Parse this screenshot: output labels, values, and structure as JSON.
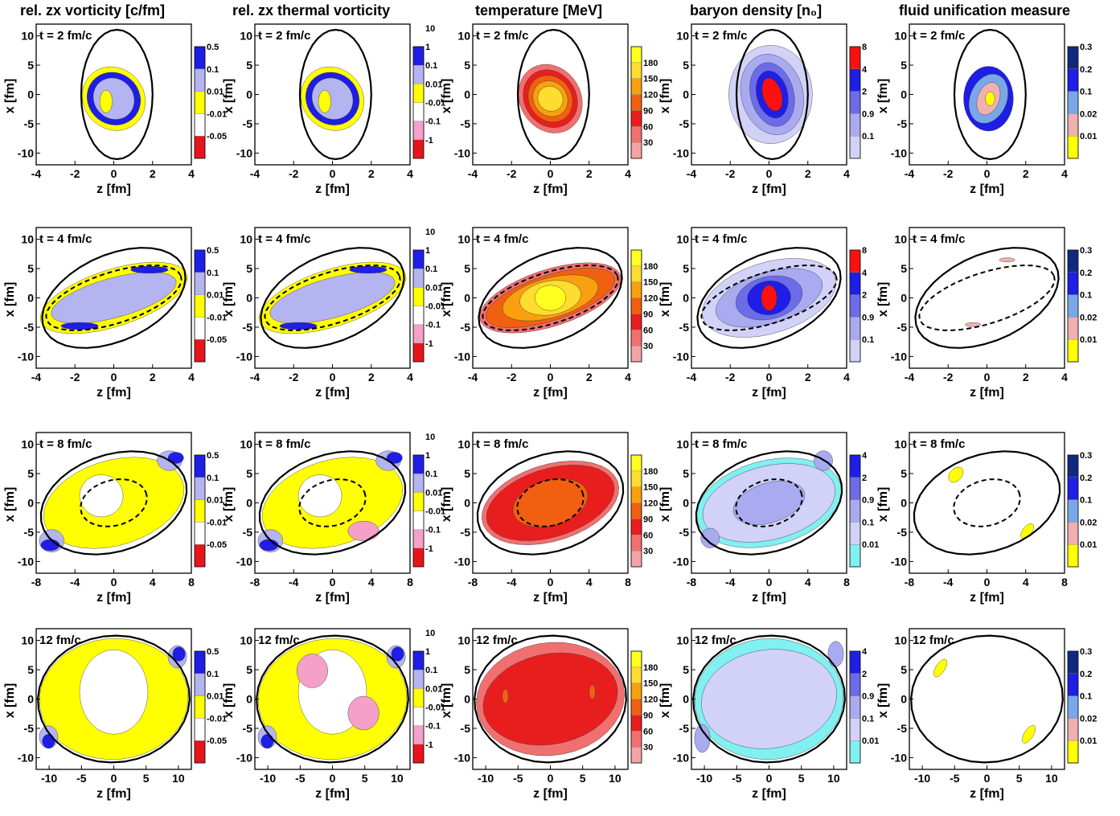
{
  "columns": [
    {
      "title": "rel. zx vorticity [c/fm]"
    },
    {
      "title": "rel. zx thermal vorticity"
    },
    {
      "title": "temperature [MeV]"
    },
    {
      "title": "baryon density [n₀]"
    },
    {
      "title": "fluid unification measure"
    }
  ],
  "axis_labels": {
    "x": "z [fm]",
    "y": "x [fm]"
  },
  "time_labels": [
    "t = 2 fm/c",
    "t = 4 fm/c",
    "t = 8 fm/c",
    "12 fm/c"
  ],
  "colorbars": {
    "vorticity": {
      "colors": [
        "#e8141c",
        "#ffffff",
        "#ffff00",
        "#b4b4f0",
        "#1e1ee6"
      ],
      "labels": [
        "-0.05",
        "-0.01",
        "0.01",
        "0.1",
        "0.5"
      ]
    },
    "thermal": {
      "colors": [
        "#e8141c",
        "#f4a0c8",
        "#ffffff",
        "#ffff00",
        "#b4b4f0",
        "#1e1ee6"
      ],
      "labels": [
        "-1",
        "-0.1",
        "-0.01",
        "0.01",
        "0.1",
        "1",
        "10"
      ]
    },
    "temperature": {
      "colors": [
        "#f4a4a4",
        "#f07070",
        "#e81e1e",
        "#f06010",
        "#f8a010",
        "#ffdc30",
        "#ffff20"
      ],
      "labels": [
        "30",
        "60",
        "90",
        "120",
        "150",
        "180"
      ]
    },
    "baryon_a": {
      "colors": [
        "#d2d2f8",
        "#aaaaf0",
        "#6c6ce8",
        "#1e1ee6",
        "#ff1010"
      ],
      "labels": [
        "0.1",
        "0.9",
        "2",
        "4",
        "8"
      ]
    },
    "baryon_b": {
      "colors": [
        "#80f0f0",
        "#d2d2f8",
        "#aaaaf0",
        "#6c6ce8",
        "#1e1ee6"
      ],
      "labels": [
        "0.01",
        "0.1",
        "0.9",
        "2",
        "4"
      ]
    },
    "unification": {
      "colors": [
        "#ffff00",
        "#f0b0b0",
        "#78a8e8",
        "#1e1ee6",
        "#102880"
      ],
      "labels": [
        "0.01",
        "0.02",
        "0.1",
        "0.2",
        "0.3"
      ]
    }
  },
  "chart_data": {
    "type": "heatmap",
    "grid": "5 columns x 4 rows of contour plots",
    "rows": [
      {
        "time": "t = 2 fm/c",
        "z_range": [
          -4,
          4
        ],
        "z_ticks": [
          "-4",
          "-2",
          "0",
          "2",
          "4"
        ],
        "x_range": [
          -12,
          12
        ],
        "x_ticks": [
          "10",
          "5",
          "0",
          "-5",
          "-10"
        ]
      },
      {
        "time": "t = 4 fm/c",
        "z_range": [
          -4,
          4
        ],
        "z_ticks": [
          "-4",
          "-2",
          "0",
          "2",
          "4"
        ],
        "x_range": [
          -12,
          12
        ],
        "x_ticks": [
          "10",
          "5",
          "0",
          "-5",
          "-10"
        ]
      },
      {
        "time": "t = 8 fm/c",
        "z_range": [
          -8,
          8
        ],
        "z_ticks": [
          "-8",
          "-4",
          "0",
          "4",
          "8"
        ],
        "x_range": [
          -12,
          12
        ],
        "x_ticks": [
          "10",
          "5",
          "0",
          "-5",
          "-10"
        ]
      },
      {
        "time": "12 fm/c",
        "z_range": [
          -12,
          12
        ],
        "z_ticks": [
          "-10",
          "-5",
          "0",
          "5",
          "10"
        ],
        "x_range": [
          -12,
          12
        ],
        "x_ticks": [
          "10",
          "5",
          "0",
          "-5",
          "-10"
        ]
      }
    ],
    "panel_colorbars": [
      [
        "vorticity",
        "thermal",
        "temperature",
        "baryon_a",
        "unification"
      ],
      [
        "vorticity",
        "thermal",
        "temperature",
        "baryon_a",
        "unification"
      ],
      [
        "vorticity",
        "thermal",
        "temperature",
        "baryon_b",
        "unification"
      ],
      [
        "vorticity",
        "thermal",
        "temperature",
        "baryon_b",
        "unification"
      ]
    ]
  }
}
